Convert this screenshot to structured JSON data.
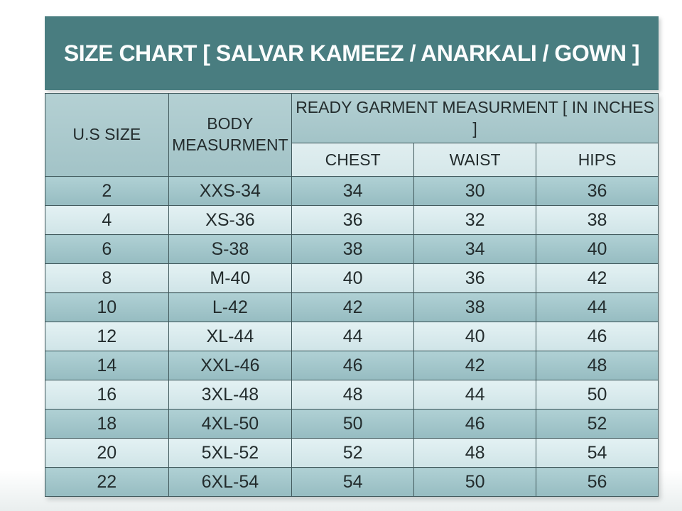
{
  "title": "SIZE CHART [ SALVAR KAMEEZ / ANARKALI / GOWN ]",
  "chart_data": {
    "type": "table",
    "title": "SIZE CHART [ SALVAR KAMEEZ / ANARKALI / GOWN ]",
    "column_groups": {
      "us_size": "U.S SIZE",
      "body_measurement": "BODY MEASURMENT",
      "ready_garment": "READY GARMENT MEASURMENT [ IN INCHES ]"
    },
    "sub_columns": [
      "CHEST",
      "WAIST",
      "HIPS"
    ],
    "column_keys": [
      "us-size",
      "body-measurement",
      "chest",
      "waist",
      "hips"
    ],
    "rows": [
      [
        "2",
        "XXS-34",
        "34",
        "30",
        "36"
      ],
      [
        "4",
        "XS-36",
        "36",
        "32",
        "38"
      ],
      [
        "6",
        "S-38",
        "38",
        "34",
        "40"
      ],
      [
        "8",
        "M-40",
        "40",
        "36",
        "42"
      ],
      [
        "10",
        "L-42",
        "42",
        "38",
        "44"
      ],
      [
        "12",
        "XL-44",
        "44",
        "40",
        "46"
      ],
      [
        "14",
        "XXL-46",
        "46",
        "42",
        "48"
      ],
      [
        "16",
        "3XL-48",
        "48",
        "44",
        "50"
      ],
      [
        "18",
        "4XL-50",
        "50",
        "46",
        "52"
      ],
      [
        "20",
        "5XL-52",
        "52",
        "48",
        "54"
      ],
      [
        "22",
        "6XL-54",
        "54",
        "50",
        "56"
      ]
    ]
  },
  "colors": {
    "title_bar_bg": "#497d80",
    "title_text": "#fbfdfd",
    "header_bg": "#aecbce",
    "subheader_bg": "#dcecee",
    "row_dark_bg": "#a2c5c9",
    "row_light_bg": "#d9ebee",
    "grid_line": "#41595c",
    "cell_text": "#232c2d"
  }
}
